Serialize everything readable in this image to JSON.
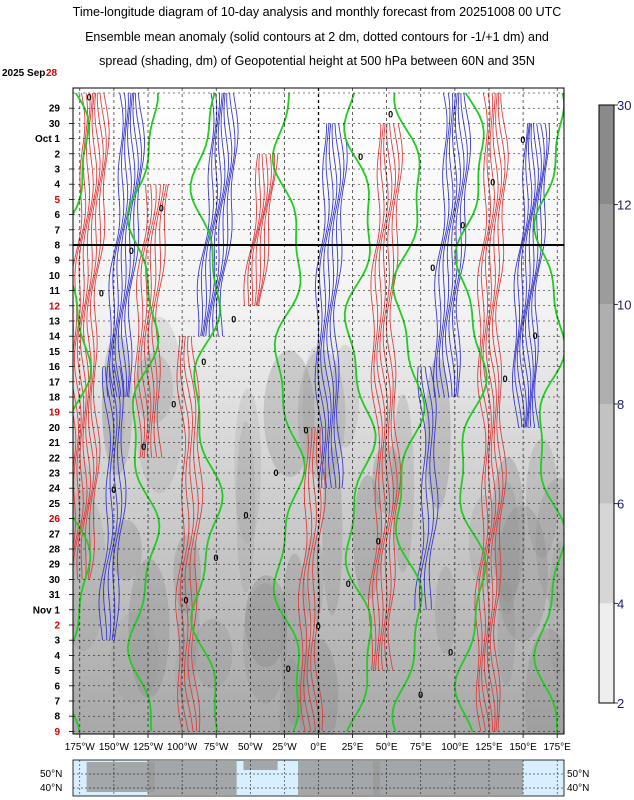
{
  "title_lines": [
    "Time-longitude diagram of 10-day analysis and monthly forecast from 20251008 00 UTC",
    "Ensemble mean anomaly (solid contours at 2 dm, dotted contours for -1/+1 dm) and",
    "spread (shading, dm) of Geopotential height at 500 hPa between 60N and 35N"
  ],
  "colors": {
    "positive_contour": "#e04040",
    "negative_contour": "#3a3ad0",
    "zero_contour": "#22cc22",
    "highlight_date": "#d40000",
    "colorbar_label": "#1a1a6e",
    "map_ocean": "#d8efff"
  },
  "chart_data": {
    "type": "heatmap",
    "x_axis": {
      "labels": [
        "175°W",
        "150°W",
        "125°W",
        "100°W",
        "75°W",
        "50°W",
        "25°W",
        "0°E",
        "25°E",
        "50°E",
        "75°E",
        "100°E",
        "125°E",
        "150°E",
        "175°E"
      ],
      "values": [
        -175,
        -150,
        -125,
        -100,
        -75,
        -50,
        -25,
        0,
        25,
        50,
        75,
        100,
        125,
        150,
        175
      ],
      "range": [
        -180,
        180
      ]
    },
    "y_axis": {
      "start_label": "2025 Sep",
      "labels": [
        {
          "text": "28",
          "red": true
        },
        {
          "text": "29"
        },
        {
          "text": "30"
        },
        {
          "text": "Oct  1"
        },
        {
          "text": "2"
        },
        {
          "text": "3"
        },
        {
          "text": "4"
        },
        {
          "text": "5",
          "red": true
        },
        {
          "text": "6"
        },
        {
          "text": "7"
        },
        {
          "text": "8"
        },
        {
          "text": "9"
        },
        {
          "text": "10"
        },
        {
          "text": "11"
        },
        {
          "text": "12",
          "red": true
        },
        {
          "text": "13"
        },
        {
          "text": "14"
        },
        {
          "text": "15"
        },
        {
          "text": "16"
        },
        {
          "text": "17"
        },
        {
          "text": "18"
        },
        {
          "text": "19",
          "red": true
        },
        {
          "text": "20"
        },
        {
          "text": "21"
        },
        {
          "text": "22"
        },
        {
          "text": "23"
        },
        {
          "text": "24"
        },
        {
          "text": "25"
        },
        {
          "text": "26",
          "red": true
        },
        {
          "text": "27"
        },
        {
          "text": "28"
        },
        {
          "text": "29"
        },
        {
          "text": "30"
        },
        {
          "text": "31"
        },
        {
          "text": "Nov  1"
        },
        {
          "text": "2",
          "red": true
        },
        {
          "text": "3"
        },
        {
          "text": "4"
        },
        {
          "text": "5"
        },
        {
          "text": "6"
        },
        {
          "text": "7"
        },
        {
          "text": "8"
        },
        {
          "text": "9",
          "red": true
        }
      ],
      "range": [
        "2025-09-28",
        "2025-11-09"
      ]
    },
    "analysis_forecast_boundary": "2025-10-08",
    "colorbar": {
      "labels": [
        "2",
        "4",
        "6",
        "8",
        "10",
        "12",
        "30"
      ],
      "values": [
        2,
        4,
        6,
        8,
        10,
        12,
        30
      ]
    },
    "contour_zero_labels": [
      "0",
      "0",
      "0",
      "0",
      "0",
      "0",
      "0",
      "0",
      "0",
      "0",
      "0",
      "0",
      "0",
      "0",
      "0",
      "0",
      "0",
      "0",
      "0",
      "0",
      "0",
      "0",
      "0",
      "0",
      "0",
      "0",
      "0",
      "0"
    ],
    "map_lat_labels": [
      "50°N",
      "40°N",
      "50°N",
      "40°N"
    ]
  }
}
